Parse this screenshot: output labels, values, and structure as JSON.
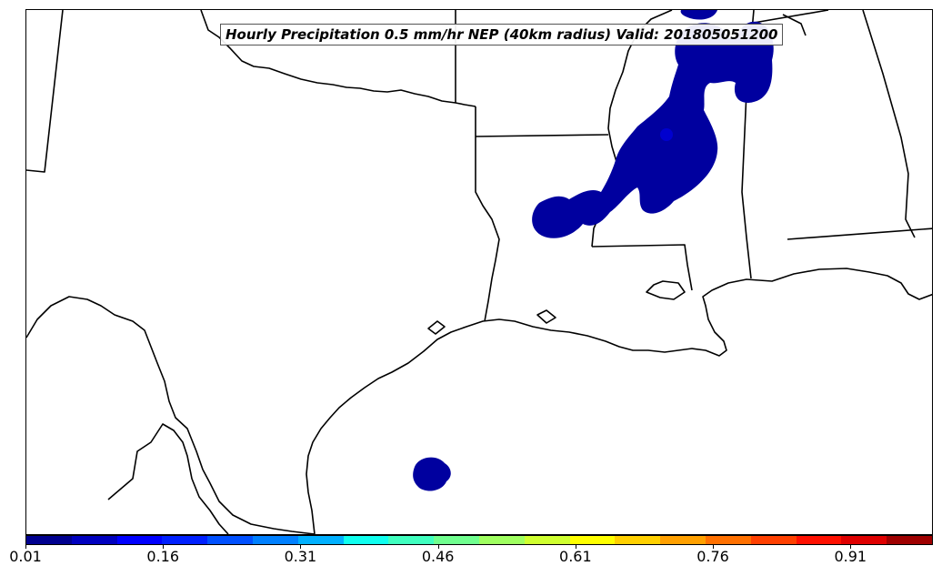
{
  "title": "Hourly Precipitation 0.5 mm/hr NEP (40km radius) Valid: 201805051200",
  "colorbar": {
    "colors": [
      "#00008f",
      "#0000bf",
      "#0000ff",
      "#0020ff",
      "#0050ff",
      "#0080ff",
      "#00b0ff",
      "#10ffef",
      "#40ffbf",
      "#70ff8f",
      "#9fff60",
      "#cfff30",
      "#ffff00",
      "#ffd000",
      "#ffa000",
      "#ff7000",
      "#ff4000",
      "#ff1000",
      "#df0000",
      "#9f0000"
    ],
    "tick_labels": [
      "0.01",
      "0.16",
      "0.31",
      "0.46",
      "0.61",
      "0.76",
      "0.91"
    ],
    "tick_values": [
      0.01,
      0.16,
      0.31,
      0.46,
      0.61,
      0.76,
      0.91
    ],
    "range": [
      0.01,
      1.0
    ]
  },
  "map": {
    "region": "Southern Central United States and Gulf of Mexico",
    "precip_color": "#00009f",
    "precip_core_color": "#0000cf"
  }
}
